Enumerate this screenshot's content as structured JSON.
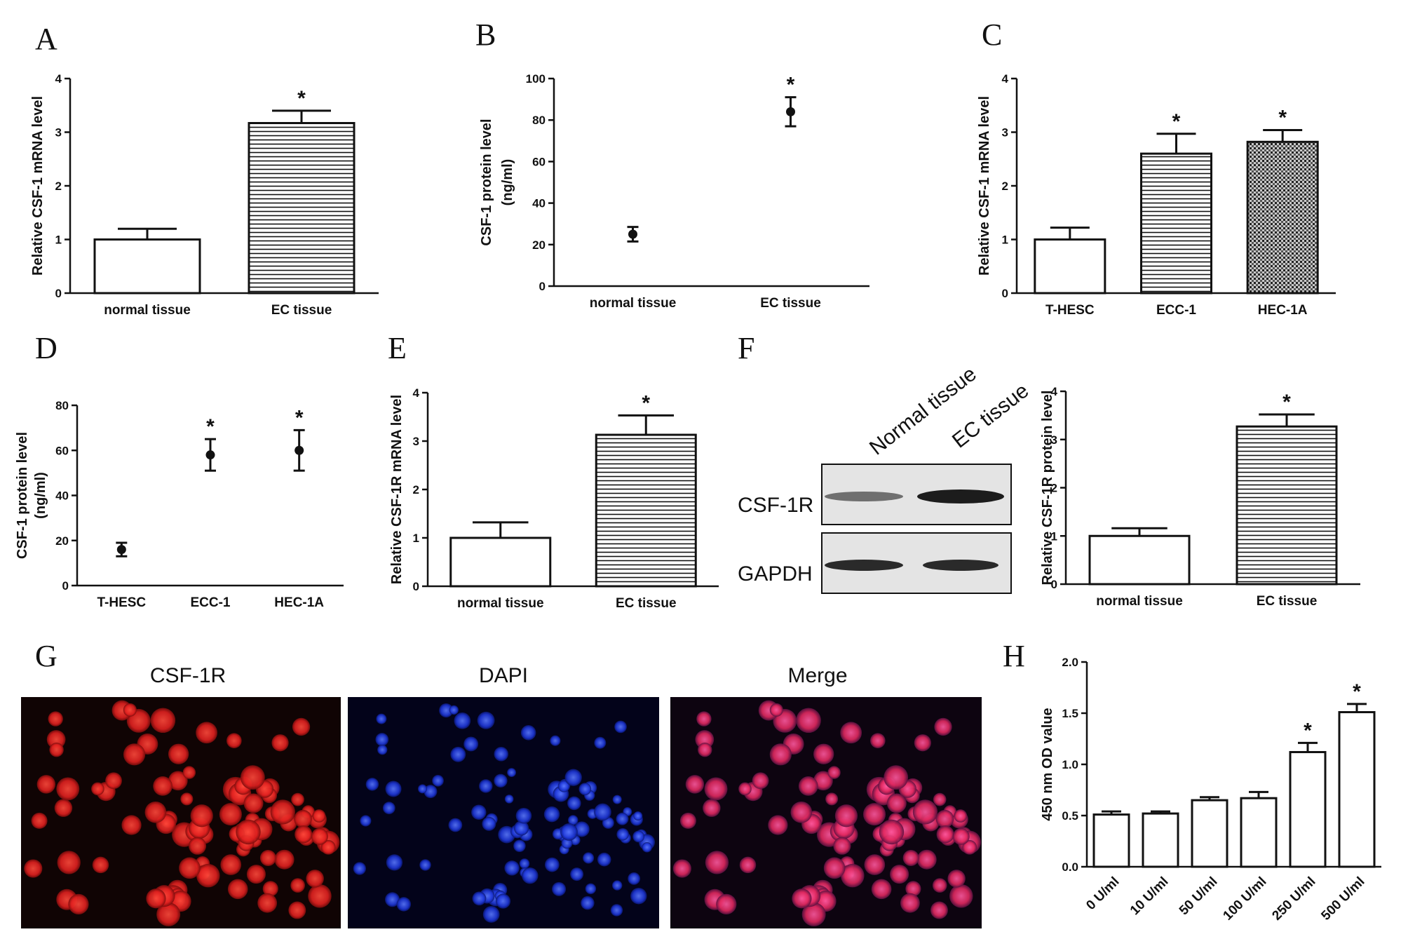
{
  "panel_letters": [
    "A",
    "B",
    "C",
    "D",
    "E",
    "F",
    "G",
    "H"
  ],
  "colors": {
    "ink": "#111111",
    "red_stain": "#e8262d",
    "blue_stain": "#1f3bd6",
    "blot_bg": "#e6e6e6"
  },
  "chart_data": [
    {
      "id": "A",
      "type": "bar",
      "categories": [
        "normal tissue",
        "EC tissue"
      ],
      "values": [
        1.0,
        3.17
      ],
      "errors": [
        0.2,
        0.23
      ],
      "patterns": [
        "none",
        "hlines"
      ],
      "ylabel": "Relative CSF-1 mRNA level",
      "ylim": [
        0,
        4
      ],
      "yticks": [
        0,
        1,
        2,
        3,
        4
      ],
      "significance": [
        "",
        "*"
      ]
    },
    {
      "id": "B",
      "type": "scatter",
      "categories": [
        "normal tissue",
        "EC tissue"
      ],
      "values": [
        25,
        84
      ],
      "errors": [
        3.5,
        7
      ],
      "ylabel": "CSF-1 protein level",
      "ylabel2": "(ng/ml)",
      "ylim": [
        0,
        100
      ],
      "yticks": [
        0,
        20,
        40,
        60,
        80,
        100
      ],
      "significance": [
        "",
        "*"
      ]
    },
    {
      "id": "C",
      "type": "bar",
      "categories": [
        "T-HESC",
        "ECC-1",
        "HEC-1A"
      ],
      "values": [
        1.0,
        2.6,
        2.82
      ],
      "errors": [
        0.22,
        0.37,
        0.22
      ],
      "patterns": [
        "none",
        "hlines",
        "dots"
      ],
      "ylabel": "Relative CSF-1 mRNA level",
      "ylim": [
        0,
        4
      ],
      "yticks": [
        0,
        1,
        2,
        3,
        4
      ],
      "significance": [
        "",
        "*",
        "*"
      ]
    },
    {
      "id": "D",
      "type": "scatter",
      "categories": [
        "T-HESC",
        "ECC-1",
        "HEC-1A"
      ],
      "values": [
        16,
        58,
        60
      ],
      "errors": [
        3,
        7,
        9
      ],
      "ylabel": "CSF-1 protein level",
      "ylabel2": "(ng/ml)",
      "ylim": [
        0,
        80
      ],
      "yticks": [
        0,
        20,
        40,
        60,
        80
      ],
      "significance": [
        "",
        "*",
        "*"
      ]
    },
    {
      "id": "E",
      "type": "bar",
      "categories": [
        "normal tissue",
        "EC tissue"
      ],
      "values": [
        1.0,
        3.13
      ],
      "errors": [
        0.32,
        0.4
      ],
      "patterns": [
        "none",
        "hlines"
      ],
      "ylabel": "Relative CSF-1R mRNA level",
      "ylim": [
        0,
        4
      ],
      "yticks": [
        0,
        1,
        2,
        3,
        4
      ],
      "significance": [
        "",
        "*"
      ]
    },
    {
      "id": "F",
      "type": "bar",
      "categories": [
        "normal tissue",
        "EC tissue"
      ],
      "values": [
        1.0,
        3.27
      ],
      "errors": [
        0.16,
        0.25
      ],
      "patterns": [
        "none",
        "hlines"
      ],
      "ylabel": "Relative CSF-1R protein level",
      "ylim": [
        0,
        4
      ],
      "yticks": [
        0,
        1,
        2,
        3,
        4
      ],
      "significance": [
        "",
        "*"
      ]
    },
    {
      "id": "H",
      "type": "bar",
      "categories": [
        "0 U/ml",
        "10 U/ml",
        "50 U/ml",
        "100 U/ml",
        "250 U/ml",
        "500 U/ml"
      ],
      "values": [
        0.51,
        0.52,
        0.65,
        0.67,
        1.12,
        1.51
      ],
      "errors": [
        0.03,
        0.02,
        0.03,
        0.06,
        0.09,
        0.08
      ],
      "patterns": [
        "none",
        "none",
        "none",
        "none",
        "none",
        "none"
      ],
      "ylabel": "450 nm OD value",
      "ylim": [
        0,
        2
      ],
      "yticks": [
        "0.0",
        "0.5",
        "1.0",
        "1.5",
        "2.0"
      ],
      "significance": [
        "",
        "",
        "",
        "",
        "*",
        "*"
      ]
    }
  ],
  "western_blot": {
    "lanes": [
      "Normal tissue",
      "EC tissue"
    ],
    "rows": [
      "CSF-1R",
      "GAPDH"
    ]
  },
  "microscopy": {
    "titles": [
      "CSF-1R",
      "DAPI",
      "Merge"
    ]
  }
}
